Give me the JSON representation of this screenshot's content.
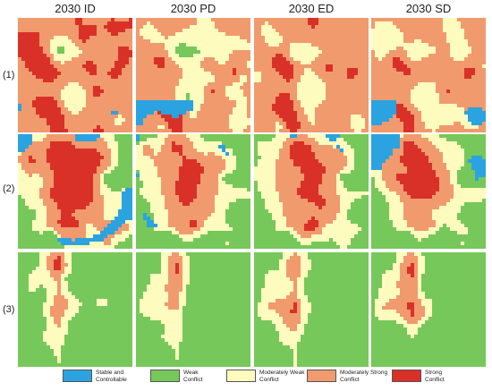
{
  "columns": [
    "2030 ID",
    "2030 PD",
    "2030 ED",
    "2030 SD"
  ],
  "rows": [
    "(1)",
    "(2)",
    "(3)"
  ],
  "legend": [
    {
      "label": "Stable and\nControllable",
      "color": "#2aa3e0"
    },
    {
      "label": "Weak\nConflict",
      "color": "#77c85a"
    },
    {
      "label": "Moderately Weak\nConflict",
      "color": "#fdfbbe"
    },
    {
      "label": "Moderately Strong\nConflict",
      "color": "#f19a6e"
    },
    {
      "label": "Strong\nConflict",
      "color": "#d93128"
    }
  ]
}
